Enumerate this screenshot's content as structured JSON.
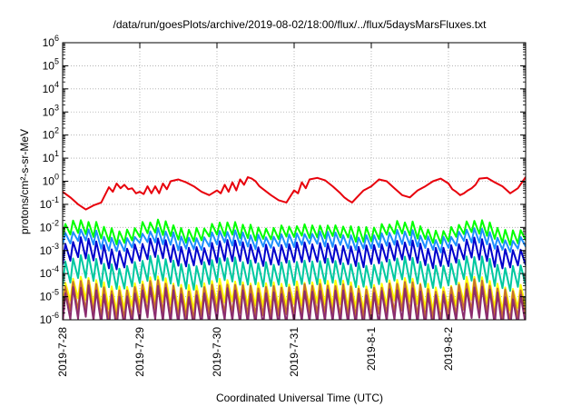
{
  "title": "/data/run/goesPlots/archive/2019-08-02/18:00/flux/../flux/5daysMarsFluxes.txt",
  "xlabel": "Coordinated Universal Time (UTC)",
  "ylabel": "protons/cm²-s-sr-MeV",
  "chart_data": {
    "type": "line",
    "title": "/data/run/goesPlots/archive/2019-08-02/18:00/flux/../flux/5daysMarsFluxes.txt",
    "xlabel": "Coordinated Universal Time (UTC)",
    "ylabel": "protons/cm2-s-sr-MeV",
    "x_ticks": [
      "2019-7-28",
      "2019-7-29",
      "2019-7-30",
      "2019-7-31",
      "2019-8-1",
      "2019-8-2"
    ],
    "xlim_days": [
      0,
      6.0
    ],
    "yscale": "log",
    "y_ticks": [
      -6,
      -5,
      -4,
      -3,
      -2,
      -1,
      0,
      1,
      2,
      3,
      4,
      5,
      6
    ],
    "ylim": [
      "1e-6",
      "1e6"
    ],
    "grid": true,
    "series": [
      {
        "color": "#e8000b",
        "x": [
          0.0,
          0.1,
          0.2,
          0.3,
          0.4,
          0.5,
          0.6,
          0.65,
          0.7,
          0.75,
          0.8,
          0.85,
          0.9,
          0.95,
          1.0,
          1.05,
          1.1,
          1.15,
          1.2,
          1.25,
          1.3,
          1.35,
          1.4,
          1.5,
          1.6,
          1.7,
          1.8,
          1.9,
          2.0,
          2.05,
          2.1,
          2.15,
          2.2,
          2.25,
          2.3,
          2.35,
          2.4,
          2.45,
          2.5,
          2.55,
          2.6,
          2.7,
          2.8,
          2.9,
          3.0,
          3.05,
          3.1,
          3.15,
          3.2,
          3.3,
          3.4,
          3.5,
          3.6,
          3.65,
          3.7,
          3.75,
          3.8,
          3.9,
          4.0,
          4.1,
          4.2,
          4.3,
          4.4,
          4.5,
          4.6,
          4.7,
          4.8,
          4.9,
          5.0,
          5.05,
          5.1,
          5.15,
          5.2,
          5.25,
          5.3,
          5.35,
          5.4,
          5.5,
          5.6,
          5.7,
          5.8,
          5.9,
          6.0
        ],
        "y": [
          0.35,
          0.2,
          0.1,
          0.06,
          0.09,
          0.12,
          0.55,
          0.35,
          0.8,
          0.5,
          0.7,
          0.45,
          0.5,
          0.3,
          0.35,
          0.28,
          0.6,
          0.3,
          0.6,
          0.3,
          0.8,
          0.45,
          1.0,
          1.2,
          0.9,
          0.6,
          0.35,
          0.25,
          0.4,
          0.3,
          0.7,
          0.35,
          0.9,
          0.4,
          1.2,
          0.7,
          1.5,
          1.3,
          1.0,
          0.6,
          0.45,
          0.25,
          0.15,
          0.12,
          0.4,
          0.3,
          0.9,
          0.5,
          1.2,
          1.4,
          1.1,
          0.6,
          0.3,
          0.2,
          0.15,
          0.12,
          0.18,
          0.4,
          0.6,
          1.2,
          1.0,
          0.5,
          0.25,
          0.2,
          0.4,
          0.6,
          1.0,
          1.3,
          0.8,
          0.45,
          0.35,
          0.25,
          0.3,
          0.4,
          0.5,
          0.7,
          1.3,
          1.4,
          0.9,
          0.6,
          0.3,
          0.5,
          1.5
        ]
      },
      {
        "color": "#00ff00",
        "level": "7e-3",
        "amp": 0.6
      },
      {
        "color": "#1e8fff",
        "level": "3e-3",
        "amp": 0.6
      },
      {
        "color": "#0000cc",
        "level": "8e-4",
        "amp": 0.9
      },
      {
        "color": "#00c8a0",
        "level": "1.2e-4",
        "amp": 1.1
      },
      {
        "color": "#ffff00",
        "level": "1.5e-5",
        "amp": 1.1
      },
      {
        "color": "#c8702c",
        "level": "8e-6",
        "amp": 1.4
      },
      {
        "color": "#8b2c6e",
        "level": "4e-6",
        "amp": 1.5
      }
    ]
  }
}
